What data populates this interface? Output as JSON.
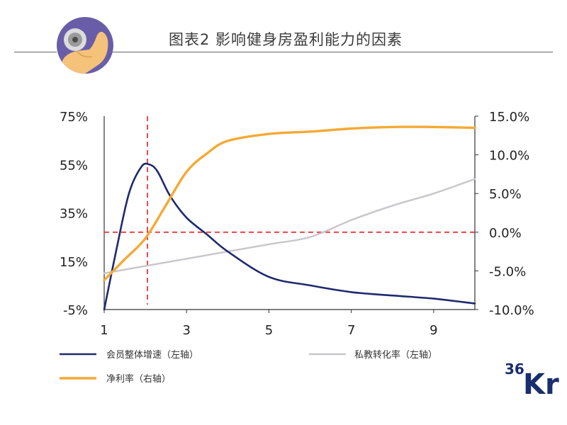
{
  "header": {
    "title": "图表2  影响健身房盈利能力的因素",
    "logo": "fitness-arm-dumbbell-logo"
  },
  "brand": {
    "name": "36Kr",
    "color": "#1a2d6e"
  },
  "colors": {
    "member_growth": "#1e2a6e",
    "pt_conversion": "#c8c5cc",
    "net_margin": "#f4a934",
    "reference": "#e23a3a",
    "logo_bg": "#6a5da8"
  },
  "chart_data": {
    "type": "line",
    "x_ticks": [
      "1",
      "3",
      "5",
      "7",
      "9"
    ],
    "xlim": [
      1,
      10
    ],
    "left_ticks": [
      "75%",
      "55%",
      "35%",
      "15%",
      "-5%"
    ],
    "ylim_left": [
      -5,
      75
    ],
    "right_ticks": [
      "15.0%",
      "10.0%",
      "5.0%",
      "0.0%",
      "-5.0%",
      "-10.0%"
    ],
    "ylim_right": [
      -10,
      15
    ],
    "reference_lines": {
      "x": 2.05,
      "y_right": 0
    },
    "series": [
      {
        "name": "会员整体增速（左轴）",
        "axis": "left",
        "x": [
          1,
          1.3,
          1.6,
          1.9,
          2.1,
          2.3,
          2.6,
          3,
          3.5,
          4,
          5,
          6,
          7,
          8,
          9,
          10
        ],
        "y": [
          -5,
          20,
          43,
          54,
          55,
          52,
          42,
          33,
          26,
          19,
          8.5,
          5,
          2.2,
          0.8,
          -0.5,
          -2.5
        ]
      },
      {
        "name": "私教转化率（左轴）",
        "axis": "left",
        "x": [
          1,
          2,
          3,
          4,
          5,
          6,
          7,
          8,
          9,
          10
        ],
        "y": [
          10,
          13,
          16,
          19,
          22,
          25,
          32,
          38,
          43,
          49
        ]
      },
      {
        "name": "净利率（右轴）",
        "axis": "right",
        "x": [
          1,
          1.5,
          2,
          2.5,
          3,
          3.5,
          4,
          5,
          6,
          7,
          8,
          9,
          10
        ],
        "y": [
          -6.2,
          -3.5,
          -0.8,
          3.5,
          7.8,
          10.2,
          11.8,
          12.7,
          13.0,
          13.4,
          13.6,
          13.6,
          13.5
        ]
      }
    ]
  }
}
